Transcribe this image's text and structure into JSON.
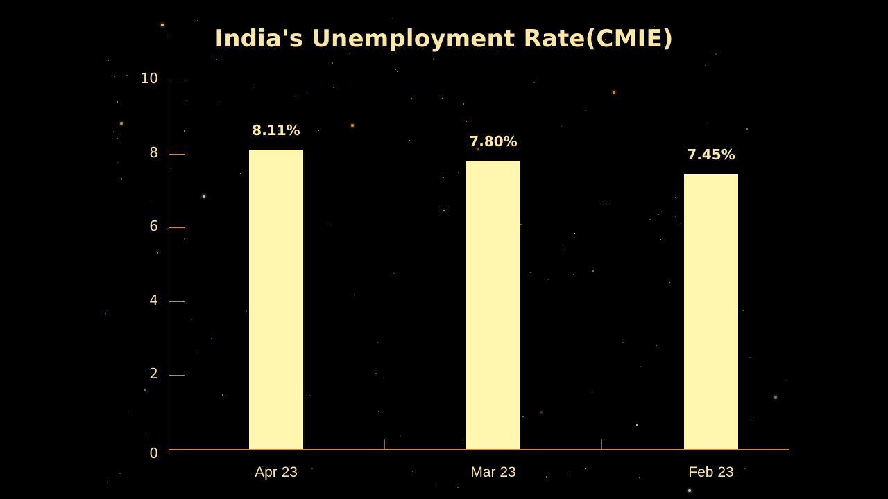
{
  "chart_data": {
    "type": "bar",
    "title": "India's Unemployment Rate(CMIE)",
    "categories": [
      "Apr 23",
      "Mar 23",
      "Feb 23"
    ],
    "values": [
      8.11,
      7.8,
      7.45
    ],
    "data_labels": [
      "8.11%",
      "7.80%",
      "7.45%"
    ],
    "xlabel": "",
    "ylabel": "",
    "ylim": [
      0,
      10
    ],
    "yticks": [
      0,
      2,
      4,
      6,
      8,
      10
    ],
    "grid": false,
    "legend": null,
    "colors": {
      "background": "#000000",
      "bar": "#fff6b0",
      "text": "#fbe7a6",
      "axis": "#c98a3a"
    }
  },
  "yticks_labels": [
    "0",
    "2",
    "4",
    "6",
    "8",
    "10"
  ]
}
